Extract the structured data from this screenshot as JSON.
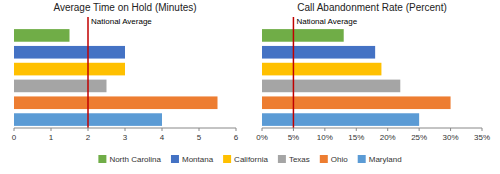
{
  "chart_data": [
    {
      "type": "bar",
      "orientation": "horizontal",
      "title": "Average Time on Hold (Minutes)",
      "categories": [
        "North Carolina",
        "Montana",
        "California",
        "Texas",
        "Ohio",
        "Maryland"
      ],
      "values": [
        1.5,
        3.0,
        3.0,
        2.5,
        5.5,
        4.0
      ],
      "colors": [
        "#70ad47",
        "#4472c4",
        "#ffc000",
        "#a5a5a5",
        "#ed7d31",
        "#5b9bd5"
      ],
      "xlim": [
        0,
        6
      ],
      "xticks": [
        0,
        1,
        2,
        3,
        4,
        5,
        6
      ],
      "reference_line": {
        "value": 2.0,
        "label": "National Average",
        "color": "#c00000"
      },
      "tick_labels": "x",
      "legend": "bottom"
    },
    {
      "type": "bar",
      "orientation": "horizontal",
      "title": "Call Abandonment Rate (Percent)",
      "categories": [
        "North Carolina",
        "Montana",
        "California",
        "Texas",
        "Ohio",
        "Maryland"
      ],
      "values": [
        13,
        18,
        19,
        22,
        30,
        25
      ],
      "colors": [
        "#70ad47",
        "#4472c4",
        "#ffc000",
        "#a5a5a5",
        "#ed7d31",
        "#5b9bd5"
      ],
      "xlim": [
        0,
        35
      ],
      "xticks": [
        {
          "value": 0,
          "label": "0%"
        },
        {
          "value": 5,
          "label": "5%"
        },
        {
          "value": 10,
          "label": "10%"
        },
        {
          "value": 15,
          "label": "15%"
        },
        {
          "value": 20,
          "label": "20%"
        },
        {
          "value": 25,
          "label": "25%"
        },
        {
          "value": 30,
          "label": "30%"
        },
        {
          "value": 35,
          "label": "35%"
        }
      ],
      "reference_line": {
        "value": 5,
        "label": "National Average",
        "color": "#c00000"
      },
      "tick_labels": "x"
    }
  ]
}
